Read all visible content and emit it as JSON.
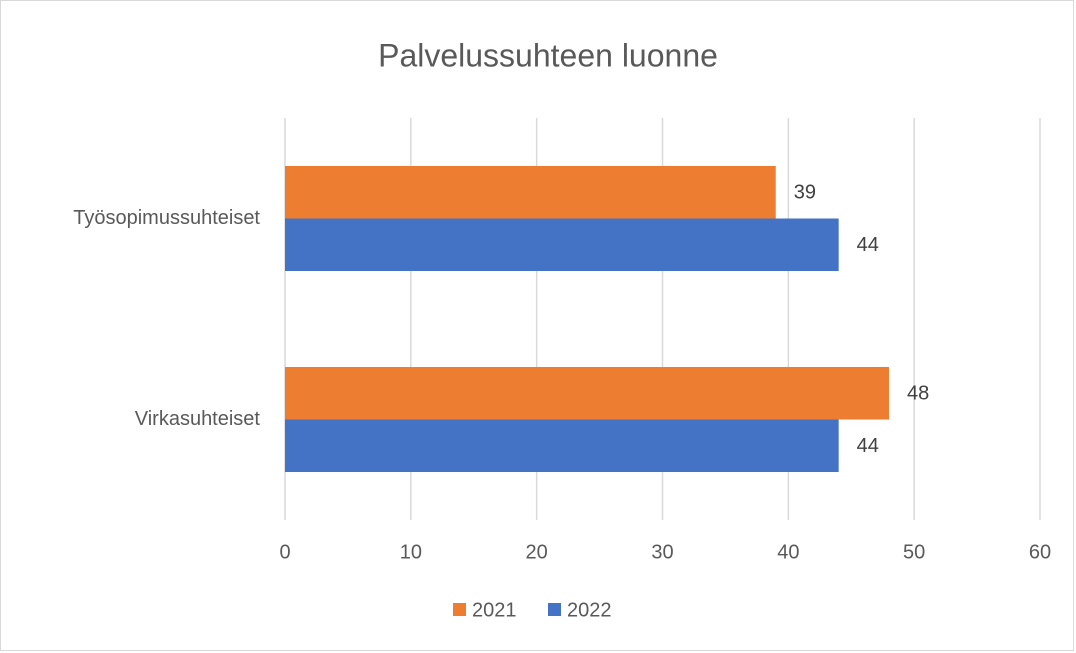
{
  "chart_data": {
    "type": "bar",
    "orientation": "horizontal",
    "title": "Palvelussuhteen luonne",
    "categories": [
      "Työsopimussuhteiset",
      "Virkasuhteiset"
    ],
    "series": [
      {
        "name": "2021",
        "color": "#ED7D31",
        "values": [
          39,
          48
        ]
      },
      {
        "name": "2022",
        "color": "#4472C4",
        "values": [
          44,
          44
        ]
      }
    ],
    "xlim": [
      0,
      60
    ],
    "xticks": [
      0,
      10,
      20,
      30,
      40,
      50,
      60
    ],
    "grid": true,
    "legend": "bottom"
  }
}
